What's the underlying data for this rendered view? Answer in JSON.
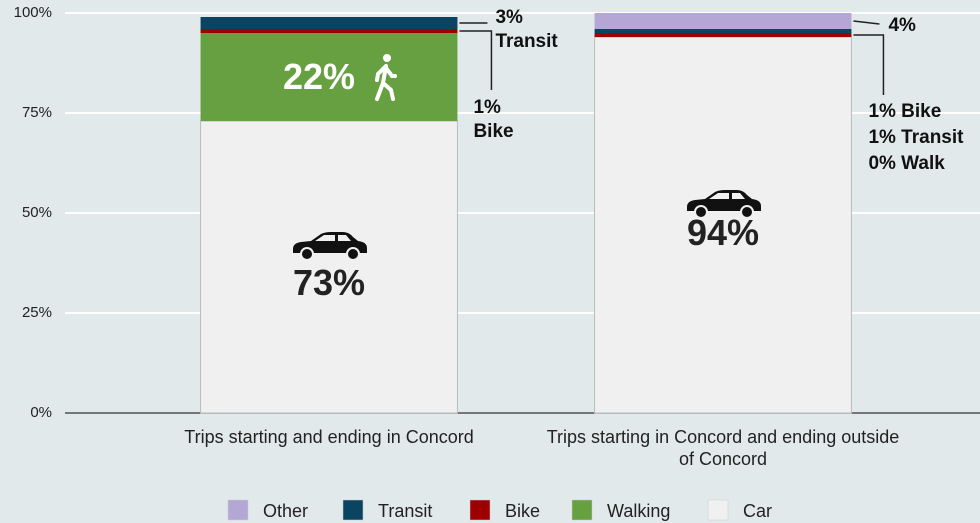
{
  "chart_data": {
    "type": "stacked_bar",
    "categories": [
      "Trips starting and ending in Concord",
      "Trips starting in Concord and ending outside of Concord"
    ],
    "series": [
      {
        "name": "Car",
        "color": "#f0f0f0",
        "values": [
          73,
          94
        ],
        "value_labels": [
          "73%",
          "94%"
        ]
      },
      {
        "name": "Walking",
        "color": "#67a040",
        "values": [
          22,
          0
        ],
        "value_labels": [
          "22%",
          "0% Walk"
        ]
      },
      {
        "name": "Bike",
        "color": "#9e0000",
        "values": [
          1,
          1
        ],
        "value_labels": [
          "1% Bike",
          "1% Bike"
        ]
      },
      {
        "name": "Transit",
        "color": "#0b4461",
        "values": [
          3,
          1
        ],
        "value_labels": [
          "3% Transit",
          "1% Transit"
        ]
      },
      {
        "name": "Other",
        "color": "#b4a7d6",
        "values": [
          0,
          4
        ],
        "value_labels": [
          null,
          "4%"
        ]
      }
    ],
    "ylim": [
      0,
      100
    ],
    "yticks": [
      {
        "value": 0,
        "label": "0%"
      },
      {
        "value": 25,
        "label": "25%"
      },
      {
        "value": 50,
        "label": "50%"
      },
      {
        "value": 75,
        "label": "75%"
      },
      {
        "value": 100,
        "label": "100%"
      }
    ],
    "grid": true,
    "legend": "bottom"
  }
}
